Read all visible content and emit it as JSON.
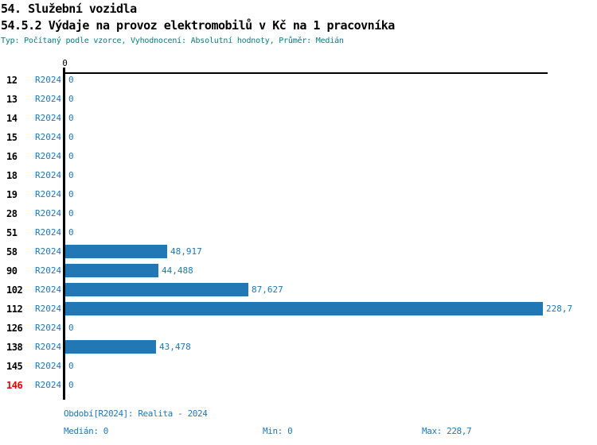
{
  "header": {
    "section_title": "54. Služební vozidla",
    "chart_title": "54.5.2 Výdaje na provoz elektromobilů v Kč na 1 pracovníka",
    "meta": "Typ: Počítaný podle vzorce, Vyhodnocení: Absolutní hodnoty, Průměr: Medián"
  },
  "chart_data": {
    "type": "bar",
    "orientation": "horizontal",
    "title": "54.5.2 Výdaje na provoz elektromobilů v Kč na 1 pracovníka",
    "xlabel": "",
    "ylabel": "",
    "xlim": [
      0,
      228.7
    ],
    "axis_tick_label": "0",
    "series_label": "R2024",
    "grid": false,
    "legend_position": "none",
    "categories": [
      "12",
      "13",
      "14",
      "15",
      "16",
      "18",
      "19",
      "28",
      "51",
      "58",
      "90",
      "102",
      "112",
      "126",
      "138",
      "145",
      "146"
    ],
    "rows": [
      {
        "id": "12",
        "period": "R2024",
        "value": 0,
        "display": "0",
        "highlight": false
      },
      {
        "id": "13",
        "period": "R2024",
        "value": 0,
        "display": "0",
        "highlight": false
      },
      {
        "id": "14",
        "period": "R2024",
        "value": 0,
        "display": "0",
        "highlight": false
      },
      {
        "id": "15",
        "period": "R2024",
        "value": 0,
        "display": "0",
        "highlight": false
      },
      {
        "id": "16",
        "period": "R2024",
        "value": 0,
        "display": "0",
        "highlight": false
      },
      {
        "id": "18",
        "period": "R2024",
        "value": 0,
        "display": "0",
        "highlight": false
      },
      {
        "id": "19",
        "period": "R2024",
        "value": 0,
        "display": "0",
        "highlight": false
      },
      {
        "id": "28",
        "period": "R2024",
        "value": 0,
        "display": "0",
        "highlight": false
      },
      {
        "id": "51",
        "period": "R2024",
        "value": 0,
        "display": "0",
        "highlight": false
      },
      {
        "id": "58",
        "period": "R2024",
        "value": 48.917,
        "display": "48,917",
        "highlight": false
      },
      {
        "id": "90",
        "period": "R2024",
        "value": 44.488,
        "display": "44,488",
        "highlight": false
      },
      {
        "id": "102",
        "period": "R2024",
        "value": 87.627,
        "display": "87,627",
        "highlight": false
      },
      {
        "id": "112",
        "period": "R2024",
        "value": 228.7,
        "display": "228,7",
        "highlight": false
      },
      {
        "id": "126",
        "period": "R2024",
        "value": 0,
        "display": "0",
        "highlight": false
      },
      {
        "id": "138",
        "period": "R2024",
        "value": 43.478,
        "display": "43,478",
        "highlight": false
      },
      {
        "id": "145",
        "period": "R2024",
        "value": 0,
        "display": "0",
        "highlight": false
      },
      {
        "id": "146",
        "period": "R2024",
        "value": 0,
        "display": "0",
        "highlight": true
      }
    ]
  },
  "footer": {
    "period_line": "Období[R2024]: Realita - 2024",
    "median": "Medián: 0",
    "min": "Min: 0",
    "max": "Max: 228,7"
  },
  "colors": {
    "bar": "#2277b5",
    "blue_text": "#1f77b4",
    "meta_text": "#008080",
    "highlight_row": "#e80000",
    "axis": "#000000"
  }
}
